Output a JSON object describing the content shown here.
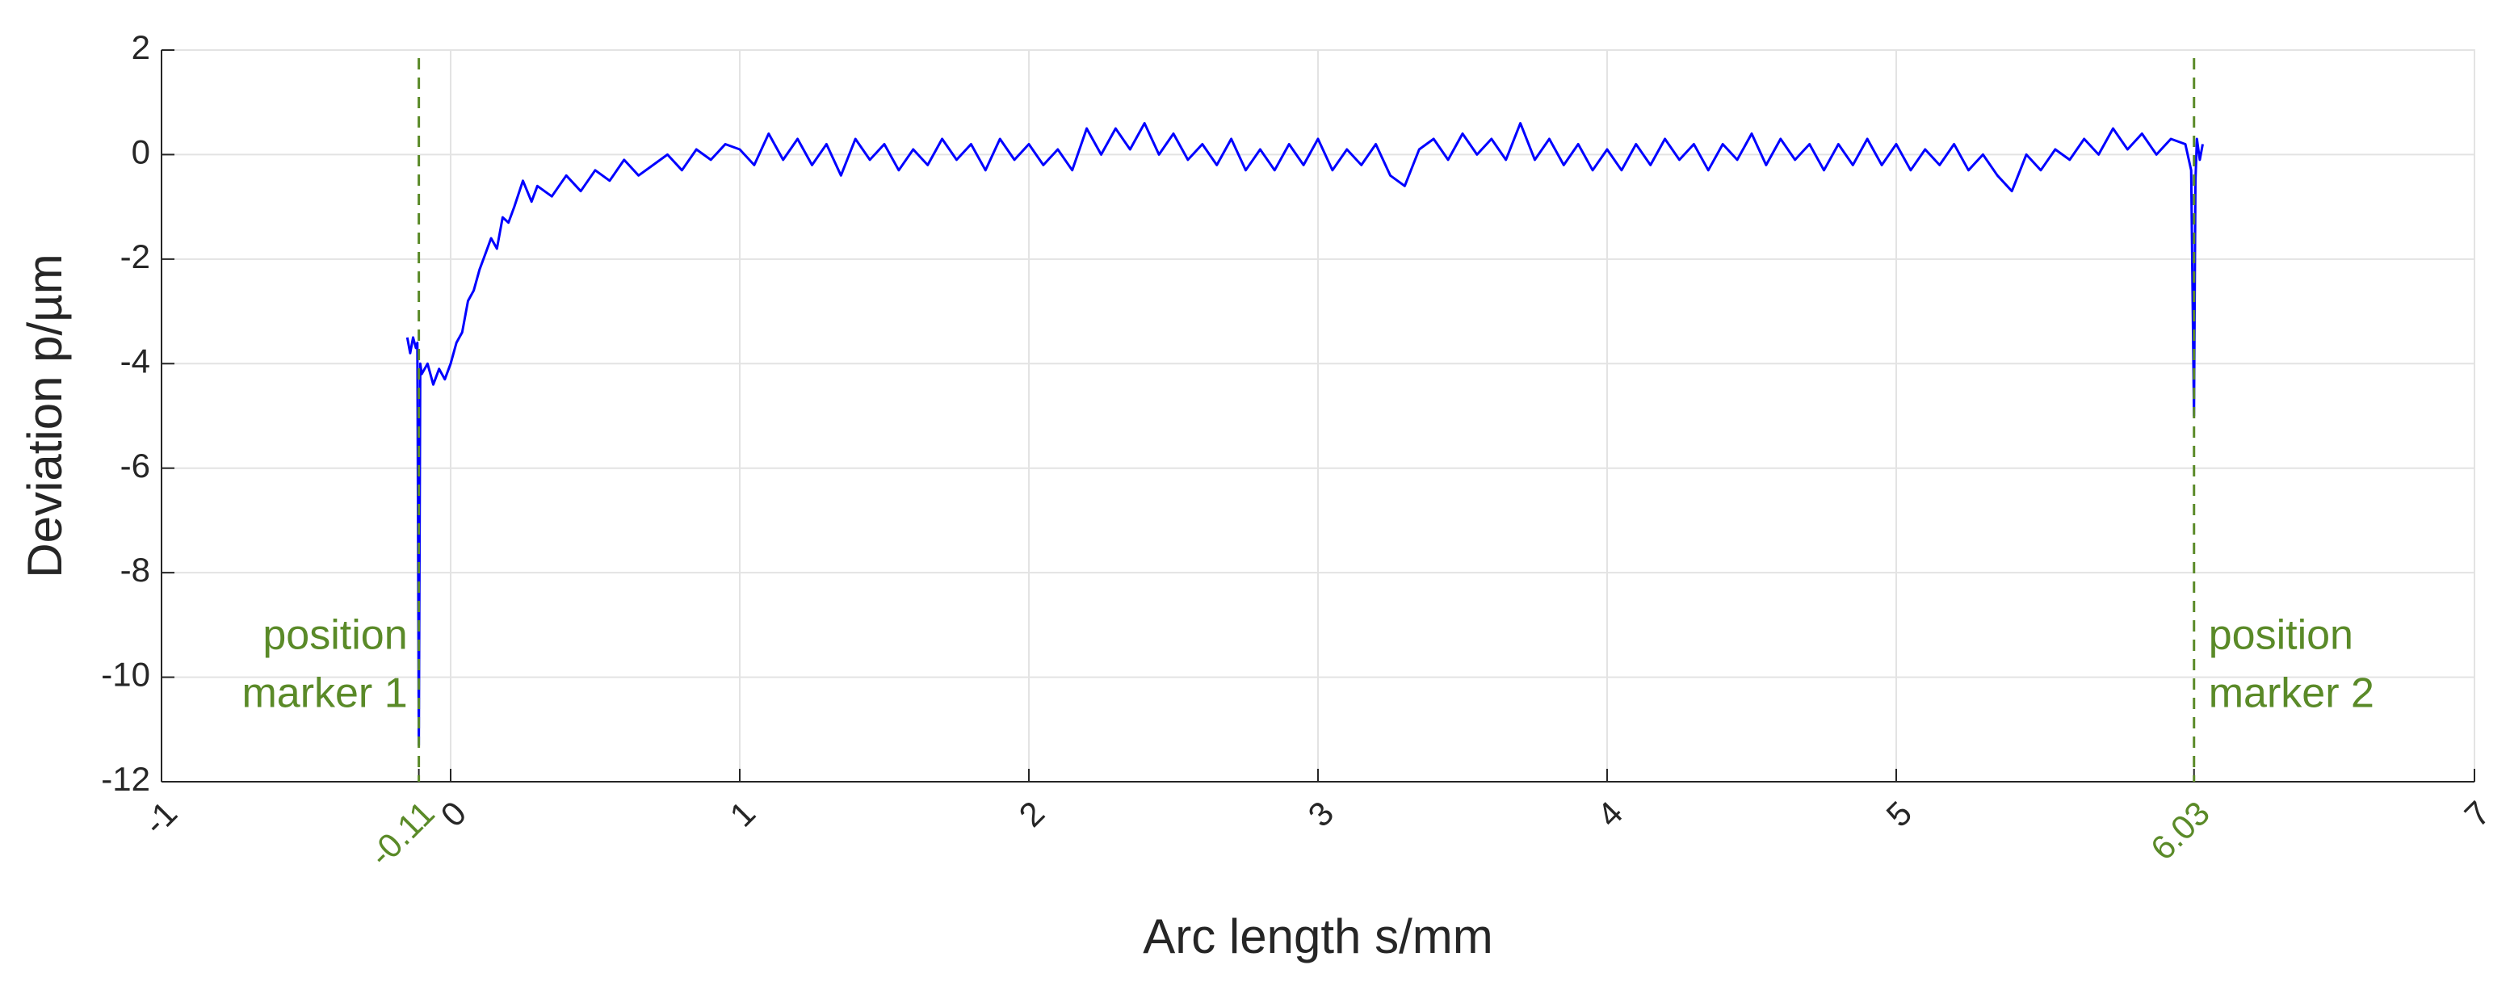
{
  "chart_data": {
    "type": "line",
    "xlabel": "Arc length s/mm",
    "ylabel": "Deviation p/µm",
    "xlim": [
      -1,
      7
    ],
    "ylim": [
      -12,
      2
    ],
    "xticks": [
      -1,
      -0.11,
      0,
      1,
      2,
      3,
      4,
      5,
      6.03,
      7
    ],
    "yticks": [
      -12,
      -10,
      -8,
      -6,
      -4,
      -2,
      0,
      2
    ],
    "grid": true,
    "markers": [
      {
        "x": -0.11,
        "lines": [
          "position",
          "marker 1"
        ],
        "side": "left",
        "color": "#5a8a28"
      },
      {
        "x": 6.03,
        "lines": [
          "position",
          "marker 2"
        ],
        "side": "right",
        "color": "#5a8a28"
      }
    ],
    "series": [
      {
        "color": "#0000ff",
        "x": [
          -0.15,
          -0.14,
          -0.13,
          -0.12,
          -0.115,
          -0.11,
          -0.105,
          -0.1,
          -0.08,
          -0.06,
          -0.04,
          -0.02,
          0,
          0.02,
          0.04,
          0.06,
          0.08,
          0.1,
          0.12,
          0.14,
          0.16,
          0.18,
          0.2,
          0.22,
          0.25,
          0.28,
          0.3,
          0.35,
          0.4,
          0.45,
          0.5,
          0.55,
          0.6,
          0.65,
          0.7,
          0.75,
          0.8,
          0.85,
          0.9,
          0.95,
          1.0,
          1.05,
          1.1,
          1.15,
          1.2,
          1.25,
          1.3,
          1.35,
          1.4,
          1.45,
          1.5,
          1.55,
          1.6,
          1.65,
          1.7,
          1.75,
          1.8,
          1.85,
          1.9,
          1.95,
          2.0,
          2.05,
          2.1,
          2.15,
          2.2,
          2.25,
          2.3,
          2.35,
          2.4,
          2.45,
          2.5,
          2.55,
          2.6,
          2.65,
          2.7,
          2.75,
          2.8,
          2.85,
          2.9,
          2.95,
          3.0,
          3.05,
          3.1,
          3.15,
          3.2,
          3.25,
          3.3,
          3.35,
          3.4,
          3.45,
          3.5,
          3.55,
          3.6,
          3.65,
          3.7,
          3.75,
          3.8,
          3.85,
          3.9,
          3.95,
          4.0,
          4.05,
          4.1,
          4.15,
          4.2,
          4.25,
          4.3,
          4.35,
          4.4,
          4.45,
          4.5,
          4.55,
          4.6,
          4.65,
          4.7,
          4.75,
          4.8,
          4.85,
          4.9,
          4.95,
          5.0,
          5.05,
          5.1,
          5.15,
          5.2,
          5.25,
          5.3,
          5.35,
          5.4,
          5.45,
          5.5,
          5.55,
          5.6,
          5.65,
          5.7,
          5.75,
          5.8,
          5.85,
          5.9,
          5.95,
          6.0,
          6.02,
          6.03,
          6.035,
          6.04,
          6.05,
          6.06
        ],
        "values": [
          -3.5,
          -3.8,
          -3.5,
          -3.7,
          -3.6,
          -11.3,
          -4.0,
          -4.2,
          -4.0,
          -4.4,
          -4.1,
          -4.3,
          -4.0,
          -3.6,
          -3.4,
          -2.8,
          -2.6,
          -2.2,
          -1.9,
          -1.6,
          -1.8,
          -1.2,
          -1.3,
          -1.0,
          -0.5,
          -0.9,
          -0.6,
          -0.8,
          -0.4,
          -0.7,
          -0.3,
          -0.5,
          -0.1,
          -0.4,
          -0.2,
          0.0,
          -0.3,
          0.1,
          -0.1,
          0.2,
          0.1,
          -0.2,
          0.4,
          -0.1,
          0.3,
          -0.2,
          0.2,
          -0.4,
          0.3,
          -0.1,
          0.2,
          -0.3,
          0.1,
          -0.2,
          0.3,
          -0.1,
          0.2,
          -0.3,
          0.3,
          -0.1,
          0.2,
          -0.2,
          0.1,
          -0.3,
          0.5,
          0.0,
          0.5,
          0.1,
          0.6,
          0.0,
          0.4,
          -0.1,
          0.2,
          -0.2,
          0.3,
          -0.3,
          0.1,
          -0.3,
          0.2,
          -0.2,
          0.3,
          -0.3,
          0.1,
          -0.2,
          0.2,
          -0.4,
          -0.6,
          0.1,
          0.3,
          -0.1,
          0.4,
          0.0,
          0.3,
          -0.1,
          0.6,
          -0.1,
          0.3,
          -0.2,
          0.2,
          -0.3,
          0.1,
          -0.3,
          0.2,
          -0.2,
          0.3,
          -0.1,
          0.2,
          -0.3,
          0.2,
          -0.1,
          0.4,
          -0.2,
          0.3,
          -0.1,
          0.2,
          -0.3,
          0.2,
          -0.2,
          0.3,
          -0.2,
          0.2,
          -0.3,
          0.1,
          -0.2,
          0.2,
          -0.3,
          0.0,
          -0.4,
          -0.7,
          0.0,
          -0.3,
          0.1,
          -0.1,
          0.3,
          0.0,
          0.5,
          0.1,
          0.4,
          0.0,
          0.3,
          0.2,
          -0.3,
          -5.0,
          -0.5,
          0.3,
          -0.1,
          0.2
        ]
      }
    ]
  }
}
